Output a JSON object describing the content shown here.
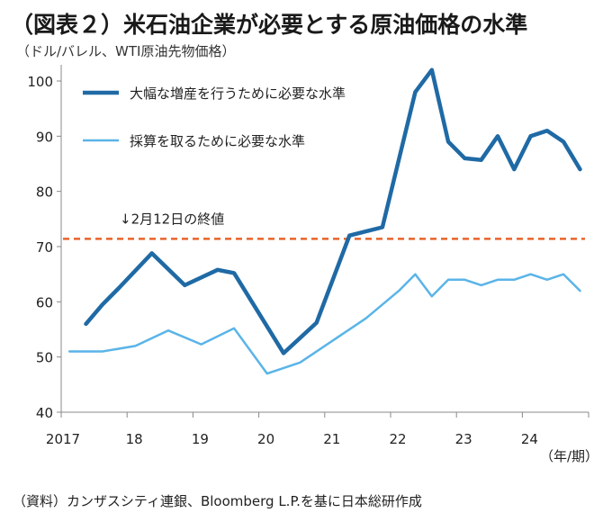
{
  "figure": {
    "title": "（図表２）米石油企業が必要とする原油価格の水準",
    "unit_note": "（ドル/バレル、WTI原油先物価格）",
    "x_unit": "（年/期）",
    "source": "（資料）カンザスシティ連銀、Bloomberg L.P.を基に日本総研作成"
  },
  "chart_data": {
    "type": "line",
    "ylim": [
      40,
      105
    ],
    "yticks": [
      40,
      50,
      60,
      70,
      80,
      90,
      100
    ],
    "xticks": [
      {
        "x": 2017,
        "label": "2017"
      },
      {
        "x": 2018,
        "label": "18"
      },
      {
        "x": 2019,
        "label": "19"
      },
      {
        "x": 2020,
        "label": "20"
      },
      {
        "x": 2021,
        "label": "21"
      },
      {
        "x": 2022,
        "label": "22"
      },
      {
        "x": 2023,
        "label": "23"
      },
      {
        "x": 2024,
        "label": "24"
      }
    ],
    "xlim": [
      2017,
      2024.95
    ],
    "series": [
      {
        "name": "大幅な増産を行うために必要な水準",
        "color": "#1f6aa5",
        "width": 4.5,
        "x": [
          2017.375,
          2017.625,
          2017.875,
          2018.375,
          2018.875,
          2019.375,
          2019.625,
          2020.375,
          2020.875,
          2021.375,
          2021.875,
          2022.375,
          2022.625,
          2022.875,
          2023.125,
          2023.375,
          2023.625,
          2023.875,
          2024.125,
          2024.375,
          2024.625,
          2024.875
        ],
        "values": [
          56,
          59.5,
          62.5,
          68.8,
          63,
          65.8,
          65.2,
          50.7,
          56.2,
          72,
          73.5,
          98,
          102,
          89,
          86,
          85.7,
          90,
          84,
          90,
          91,
          89,
          84
        ]
      },
      {
        "name": "採算を取るために必要な水準",
        "color": "#5ab4e8",
        "width": 2.5,
        "x": [
          2017.125,
          2017.625,
          2018.125,
          2018.625,
          2019.125,
          2019.625,
          2020.125,
          2020.625,
          2021.125,
          2021.625,
          2022.125,
          2022.375,
          2022.625,
          2022.875,
          2023.125,
          2023.375,
          2023.625,
          2023.875,
          2024.125,
          2024.375,
          2024.625,
          2024.875
        ],
        "values": [
          51,
          51,
          52,
          54.8,
          52.3,
          55.2,
          47,
          49,
          53,
          57,
          62,
          65,
          61,
          64,
          64,
          63,
          64,
          64,
          65,
          64,
          65,
          62
        ]
      }
    ],
    "reference_line": {
      "value": 71.4,
      "label": "↓2月12日の終値",
      "color": "#e8632a"
    },
    "legend_position": "top-left",
    "grid": false
  }
}
